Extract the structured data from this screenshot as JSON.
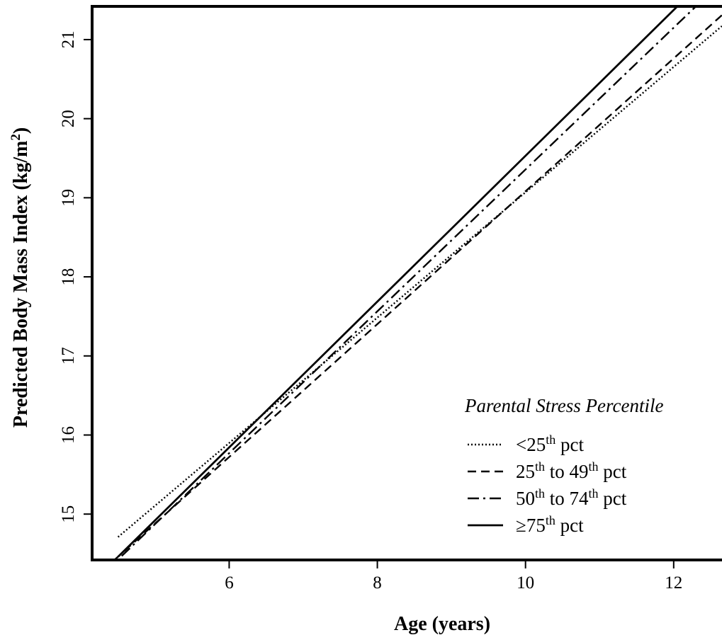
{
  "chart_data": {
    "type": "line",
    "xlabel": "Age (years)",
    "ylabel": {
      "main": "Predicted Body Mass Index (kg/m",
      "sup": "2",
      "close": ")"
    },
    "xlim": [
      4.15,
      12.7
    ],
    "ylim": [
      14.42,
      21.42
    ],
    "x_ticks": [
      "6",
      "8",
      "10",
      "12"
    ],
    "y_ticks": [
      "15",
      "16",
      "17",
      "18",
      "19",
      "20",
      "21"
    ],
    "grid": false,
    "legend_position": "bottom-right",
    "legend": {
      "title": "Parental Stress Percentile",
      "items": [
        {
          "pre": "<25",
          "sup": "th",
          "mid": "",
          "sup2": "",
          "post": " pct"
        },
        {
          "pre": "25",
          "sup": "th",
          "mid": " to 49",
          "sup2": "th",
          "post": " pct"
        },
        {
          "pre": "50",
          "sup": "th",
          "mid": " to 74",
          "sup2": "th",
          "post": " pct"
        },
        {
          "pre": "≥75",
          "sup": "th",
          "mid": "",
          "sup2": "",
          "post": " pct"
        }
      ]
    },
    "series": [
      {
        "name": "<25th pct",
        "style": "dotted",
        "x": [
          4.5,
          12.65
        ],
        "y": [
          14.71,
          21.17
        ]
      },
      {
        "name": "25th to 49th pct",
        "style": "dashed",
        "x": [
          4.45,
          12.7
        ],
        "y": [
          14.42,
          21.35
        ]
      },
      {
        "name": "50th to 74th pct",
        "style": "dashdot",
        "x": [
          4.55,
          12.3
        ],
        "y": [
          14.47,
          21.42
        ]
      },
      {
        "name": "≥75th pct",
        "style": "solid",
        "x": [
          4.5,
          12.05
        ],
        "y": [
          14.46,
          21.42
        ]
      }
    ]
  }
}
